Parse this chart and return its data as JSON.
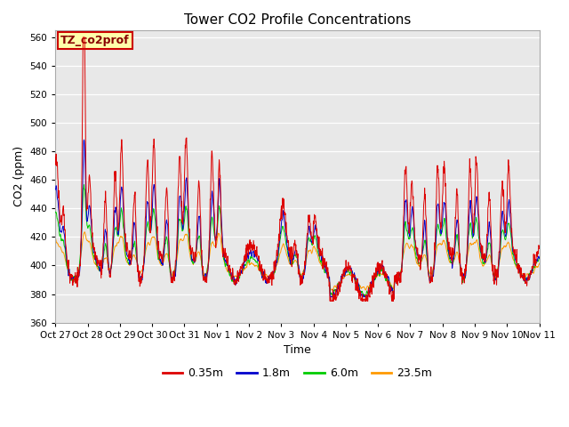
{
  "title": "Tower CO2 Profile Concentrations",
  "ylabel": "CO2 (ppm)",
  "xlabel": "Time",
  "ylim": [
    360,
    565
  ],
  "yticks": [
    360,
    380,
    400,
    420,
    440,
    460,
    480,
    500,
    520,
    540,
    560
  ],
  "series_labels": [
    "0.35m",
    "1.8m",
    "6.0m",
    "23.5m"
  ],
  "series_colors": [
    "#dd0000",
    "#0000cc",
    "#00cc00",
    "#ff9900"
  ],
  "fig_bg": "#ffffff",
  "plot_bg": "#e8e8e8",
  "annotation_text": "TZ_co2prof",
  "annotation_bg": "#ffffaa",
  "annotation_border": "#cc0000",
  "date_labels": [
    "Oct 27",
    "Oct 28",
    "Oct 29",
    "Oct 30",
    "Oct 31",
    "Nov 1",
    "Nov 2",
    "Nov 3",
    "Nov 4",
    "Nov 5",
    "Nov 6",
    "Nov 7",
    "Nov 8",
    "Nov 9",
    "Nov 10",
    "Nov 11"
  ],
  "n_days": 15,
  "pts_per_day": 96
}
